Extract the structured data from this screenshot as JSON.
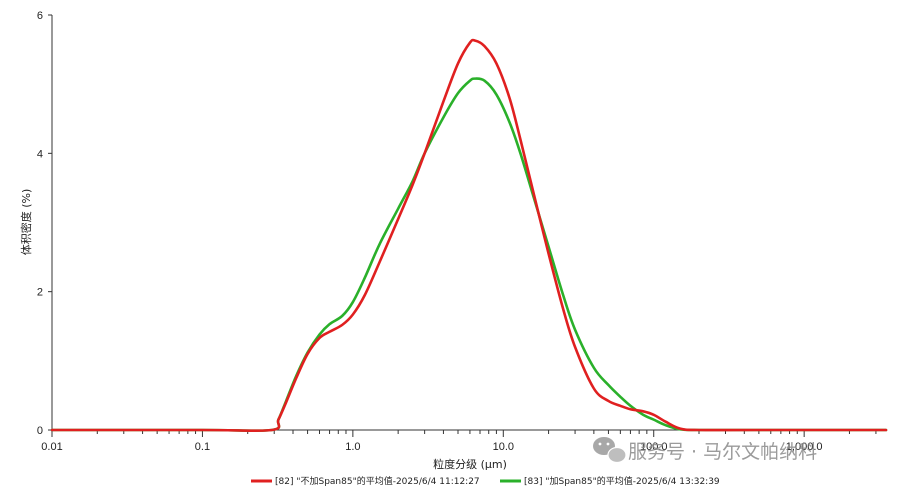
{
  "chart_data": {
    "type": "line",
    "xlabel": "粒度分级 (μm)",
    "ylabel": "体积密度 (%)",
    "xscale": "log",
    "xlim": [
      0.01,
      3500
    ],
    "ylim": [
      0,
      6
    ],
    "x_ticks": [
      0.01,
      0.1,
      1.0,
      10.0,
      100.0,
      1000.0
    ],
    "x_tick_labels": [
      "0.01",
      "0.1",
      "1.0",
      "10.0",
      "100.0",
      "1,000.0"
    ],
    "y_ticks": [
      0,
      2,
      4,
      6
    ],
    "y_tick_labels": [
      "0",
      "2",
      "4",
      "6"
    ],
    "grid": false,
    "legend_position": "bottom",
    "series": [
      {
        "name": "[82] \"不加Span85\"的平均值-2025/6/4 11:12:27",
        "color": "#e02020",
        "x": [
          0.01,
          0.1,
          0.29,
          0.32,
          0.36,
          0.42,
          0.5,
          0.6,
          0.7,
          0.85,
          1.0,
          1.2,
          1.5,
          2.0,
          2.5,
          3.0,
          4.0,
          5.0,
          6.0,
          6.5,
          7.5,
          9.0,
          11.0,
          13.0,
          16.0,
          20.0,
          25.0,
          30.0,
          40.0,
          50.0,
          60.0,
          70.0,
          85.0,
          100.0,
          120.0,
          150.0,
          200.0,
          500.0,
          3500.0
        ],
        "values": [
          0.0,
          0.0,
          0.0,
          0.15,
          0.4,
          0.75,
          1.1,
          1.33,
          1.42,
          1.52,
          1.67,
          1.95,
          2.42,
          3.05,
          3.55,
          4.0,
          4.75,
          5.3,
          5.6,
          5.63,
          5.55,
          5.3,
          4.8,
          4.2,
          3.4,
          2.55,
          1.75,
          1.2,
          0.6,
          0.42,
          0.35,
          0.3,
          0.27,
          0.22,
          0.12,
          0.02,
          0.0,
          0.0,
          0.0
        ]
      },
      {
        "name": "[83] \"加Span85\"的平均值-2025/6/4 13:32:39",
        "color": "#2ab02a",
        "x": [
          0.01,
          0.1,
          0.29,
          0.32,
          0.36,
          0.42,
          0.5,
          0.6,
          0.7,
          0.85,
          1.0,
          1.2,
          1.5,
          2.0,
          2.5,
          3.0,
          4.0,
          5.0,
          6.0,
          6.5,
          7.5,
          9.0,
          11.0,
          13.0,
          16.0,
          20.0,
          25.0,
          30.0,
          40.0,
          50.0,
          60.0,
          70.0,
          85.0,
          100.0,
          120.0,
          150.0,
          200.0,
          500.0,
          3500.0
        ],
        "values": [
          0.0,
          0.0,
          0.0,
          0.15,
          0.42,
          0.78,
          1.12,
          1.38,
          1.53,
          1.65,
          1.85,
          2.2,
          2.68,
          3.2,
          3.6,
          4.0,
          4.52,
          4.87,
          5.05,
          5.08,
          5.05,
          4.85,
          4.45,
          4.0,
          3.35,
          2.65,
          1.95,
          1.45,
          0.9,
          0.65,
          0.48,
          0.35,
          0.22,
          0.15,
          0.07,
          0.01,
          0.0,
          0.0,
          0.0
        ]
      }
    ]
  },
  "watermark": {
    "text": "服务号 · 马尔文帕纳科",
    "icon": "wechat-icon"
  }
}
